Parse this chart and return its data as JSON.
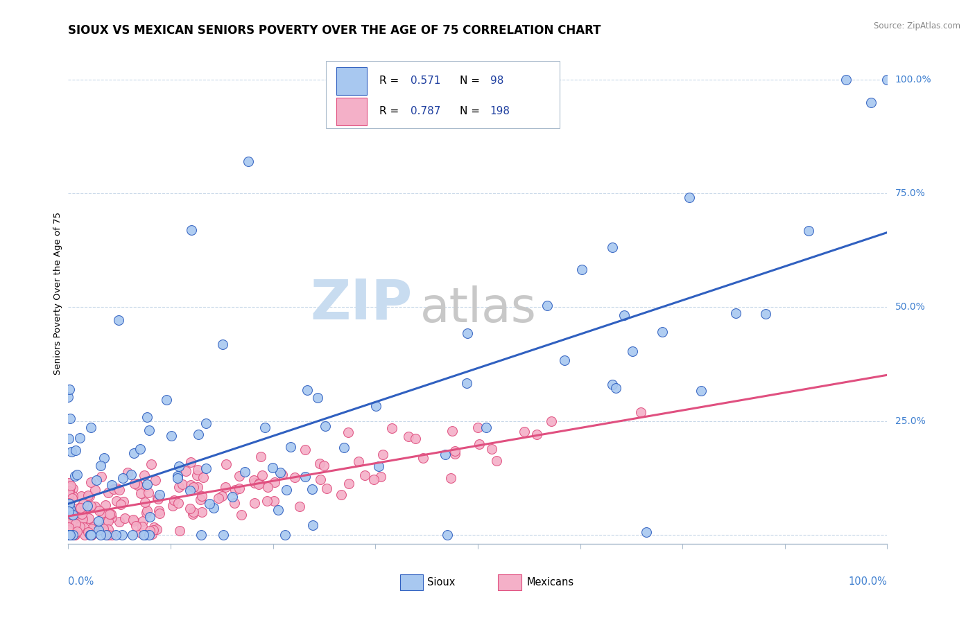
{
  "title": "SIOUX VS MEXICAN SENIORS POVERTY OVER THE AGE OF 75 CORRELATION CHART",
  "source": "Source: ZipAtlas.com",
  "ylabel": "Seniors Poverty Over the Age of 75",
  "sioux_color": "#A8C8F0",
  "mexican_color": "#F4B0C8",
  "sioux_line_color": "#3060C0",
  "mexican_line_color": "#E05080",
  "background_color": "#FFFFFF",
  "grid_color": "#C8D8E8",
  "axis_label_color": "#4080D0",
  "title_color": "#000000",
  "legend_text_color": "#2040A0",
  "watermark_zip_color": "#C8DCF0",
  "watermark_atlas_color": "#C8C8C8"
}
